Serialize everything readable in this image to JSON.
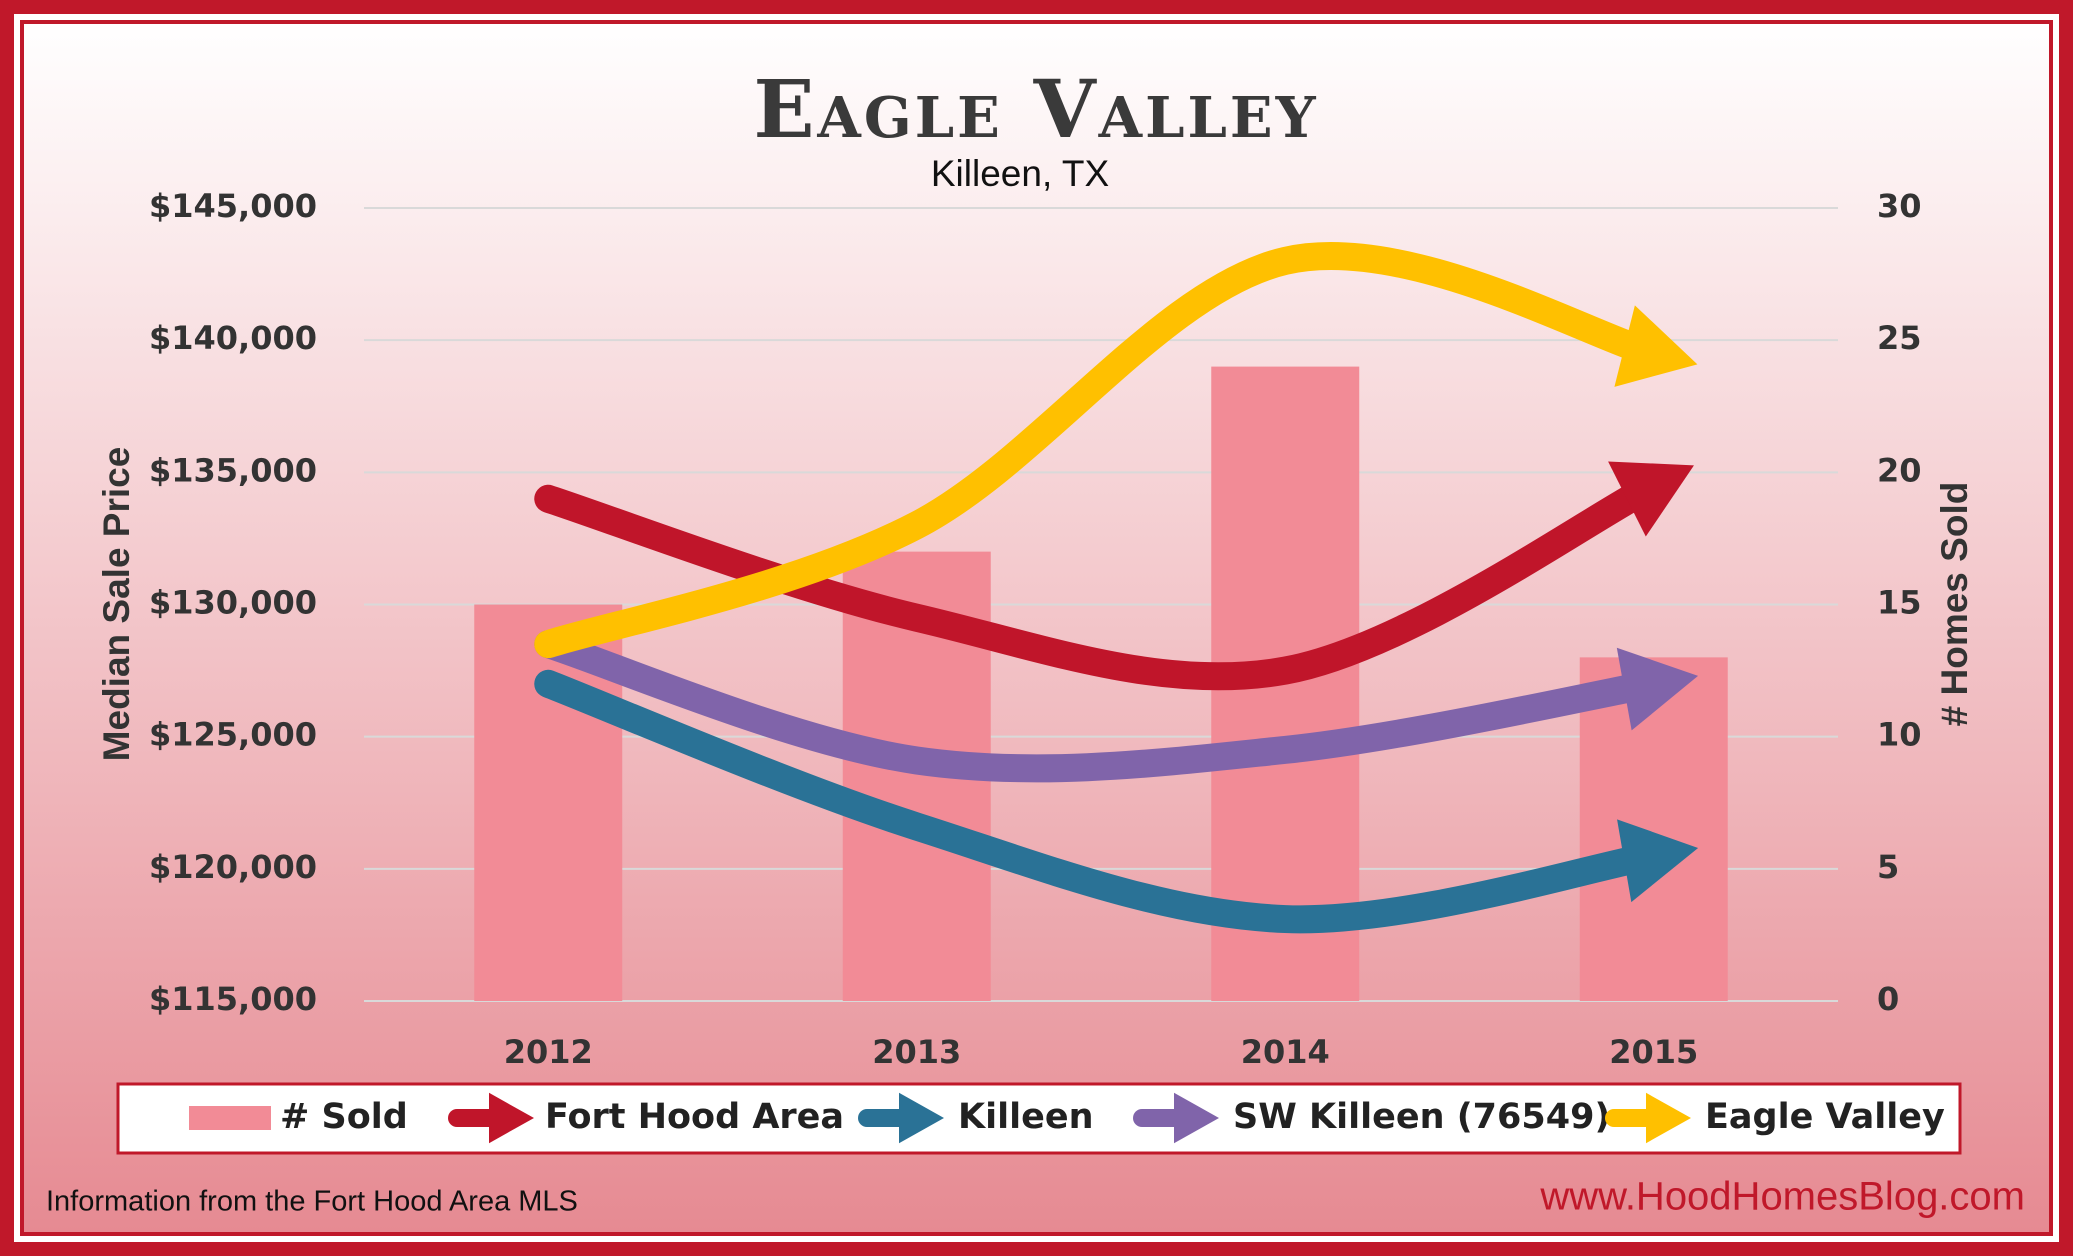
{
  "chart_data": {
    "type": "combo",
    "title": "Eagle Valley",
    "subtitle": "Killeen, TX",
    "y_label": "Median Sale Price",
    "y2_label": "# Homes Sold",
    "categories": [
      "2012",
      "2013",
      "2014",
      "2015"
    ],
    "ylim": [
      115000,
      145000
    ],
    "yticks": [
      {
        "value": 115000,
        "label": "$115,000"
      },
      {
        "value": 120000,
        "label": "$120,000"
      },
      {
        "value": 125000,
        "label": "$125,000"
      },
      {
        "value": 130000,
        "label": "$130,000"
      },
      {
        "value": 135000,
        "label": "$135,000"
      },
      {
        "value": 140000,
        "label": "$140,000"
      },
      {
        "value": 145000,
        "label": "$145,000"
      }
    ],
    "y2lim": [
      0,
      30
    ],
    "y2ticks": [
      0,
      5,
      10,
      15,
      20,
      25,
      30
    ],
    "grid": true,
    "legend": "bottom",
    "series": [
      {
        "name": "# Sold",
        "type": "bar",
        "axis": "y2",
        "color": "#f28b96",
        "values": [
          15,
          17,
          24,
          13
        ]
      },
      {
        "name": "Fort Hood Area",
        "type": "line",
        "color": "#c0152a",
        "values": [
          134000,
          129500,
          127500,
          134500
        ]
      },
      {
        "name": "Killeen",
        "type": "line",
        "color": "#2a7296",
        "values": [
          127000,
          121600,
          118100,
          120500
        ]
      },
      {
        "name": "SW Killeen (76549)",
        "type": "line",
        "color": "#8064aa",
        "values": [
          128500,
          124100,
          124500,
          127000
        ]
      },
      {
        "name": "Eagle Valley",
        "type": "line",
        "color": "#ffc000",
        "values": [
          128500,
          133000,
          143000,
          139500
        ]
      }
    ],
    "source_note": "Information from the Fort Hood Area MLS",
    "website": "www.HoodHomesBlog.com"
  }
}
